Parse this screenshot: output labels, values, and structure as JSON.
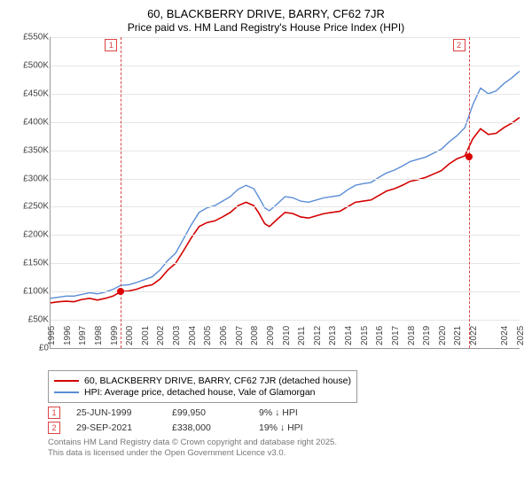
{
  "title": "60, BLACKBERRY DRIVE, BARRY, CF62 7JR",
  "subtitle": "Price paid vs. HM Land Registry's House Price Index (HPI)",
  "chart": {
    "type": "line",
    "ylim": [
      0,
      550000
    ],
    "ytick_step": 50000,
    "ylabels": [
      "£0",
      "£50K",
      "£100K",
      "£150K",
      "£200K",
      "£250K",
      "£300K",
      "£350K",
      "£400K",
      "£450K",
      "£500K",
      "£550K"
    ],
    "xlim": [
      1995,
      2025
    ],
    "xlabels": [
      "1995",
      "1996",
      "1997",
      "1998",
      "1999",
      "2000",
      "2001",
      "2002",
      "2003",
      "2004",
      "2005",
      "2006",
      "2007",
      "2008",
      "2009",
      "2010",
      "2011",
      "2012",
      "2013",
      "2014",
      "2015",
      "2016",
      "2017",
      "2018",
      "2019",
      "2020",
      "2021",
      "2022",
      "2024",
      "2025"
    ],
    "xticks": [
      1995,
      1996,
      1997,
      1998,
      1999,
      2000,
      2001,
      2002,
      2003,
      2004,
      2005,
      2006,
      2007,
      2008,
      2009,
      2010,
      2011,
      2012,
      2013,
      2014,
      2015,
      2016,
      2017,
      2018,
      2019,
      2020,
      2021,
      2022,
      2024,
      2025
    ],
    "background_color": "#ffffff",
    "grid_color": "#e5e5e5",
    "series": [
      {
        "name": "price_paid",
        "color": "#d40000",
        "width": 1.6,
        "data": [
          [
            1995,
            80000
          ],
          [
            1995.5,
            82000
          ],
          [
            1996,
            83000
          ],
          [
            1996.5,
            82000
          ],
          [
            1997,
            86000
          ],
          [
            1997.5,
            88000
          ],
          [
            1998,
            85000
          ],
          [
            1998.5,
            88000
          ],
          [
            1999,
            92000
          ],
          [
            1999.5,
            100000
          ],
          [
            2000,
            101000
          ],
          [
            2000.5,
            104000
          ],
          [
            2001,
            109000
          ],
          [
            2001.5,
            112000
          ],
          [
            2002,
            122000
          ],
          [
            2002.5,
            138000
          ],
          [
            2003,
            150000
          ],
          [
            2003.5,
            172000
          ],
          [
            2004,
            195000
          ],
          [
            2004.5,
            215000
          ],
          [
            2005,
            222000
          ],
          [
            2005.5,
            225000
          ],
          [
            2006,
            232000
          ],
          [
            2006.5,
            240000
          ],
          [
            2007,
            252000
          ],
          [
            2007.5,
            258000
          ],
          [
            2008,
            252000
          ],
          [
            2008.3,
            240000
          ],
          [
            2008.7,
            220000
          ],
          [
            2009,
            215000
          ],
          [
            2009.5,
            228000
          ],
          [
            2010,
            240000
          ],
          [
            2010.5,
            238000
          ],
          [
            2011,
            232000
          ],
          [
            2011.5,
            230000
          ],
          [
            2012,
            234000
          ],
          [
            2012.5,
            238000
          ],
          [
            2013,
            240000
          ],
          [
            2013.5,
            242000
          ],
          [
            2014,
            250000
          ],
          [
            2014.5,
            258000
          ],
          [
            2015,
            260000
          ],
          [
            2015.5,
            262000
          ],
          [
            2016,
            270000
          ],
          [
            2016.5,
            278000
          ],
          [
            2017,
            282000
          ],
          [
            2017.5,
            288000
          ],
          [
            2018,
            295000
          ],
          [
            2018.5,
            298000
          ],
          [
            2019,
            302000
          ],
          [
            2019.5,
            308000
          ],
          [
            2020,
            314000
          ],
          [
            2020.5,
            326000
          ],
          [
            2021,
            335000
          ],
          [
            2021.5,
            340000
          ],
          [
            2022,
            370000
          ],
          [
            2022.5,
            388000
          ],
          [
            2023,
            378000
          ],
          [
            2023.5,
            380000
          ],
          [
            2024,
            390000
          ],
          [
            2024.5,
            398000
          ],
          [
            2025,
            408000
          ]
        ]
      },
      {
        "name": "hpi",
        "color": "#5b8dd6",
        "width": 1.4,
        "data": [
          [
            1995,
            88000
          ],
          [
            1995.5,
            90000
          ],
          [
            1996,
            92000
          ],
          [
            1996.5,
            92000
          ],
          [
            1997,
            95000
          ],
          [
            1997.5,
            98000
          ],
          [
            1998,
            96000
          ],
          [
            1998.5,
            99000
          ],
          [
            1999,
            104000
          ],
          [
            1999.5,
            111000
          ],
          [
            2000,
            112000
          ],
          [
            2000.5,
            116000
          ],
          [
            2001,
            121000
          ],
          [
            2001.5,
            126000
          ],
          [
            2002,
            138000
          ],
          [
            2002.5,
            155000
          ],
          [
            2003,
            168000
          ],
          [
            2003.5,
            193000
          ],
          [
            2004,
            218000
          ],
          [
            2004.5,
            240000
          ],
          [
            2005,
            248000
          ],
          [
            2005.5,
            252000
          ],
          [
            2006,
            260000
          ],
          [
            2006.5,
            268000
          ],
          [
            2007,
            281000
          ],
          [
            2007.5,
            288000
          ],
          [
            2008,
            282000
          ],
          [
            2008.3,
            268000
          ],
          [
            2008.7,
            248000
          ],
          [
            2009,
            243000
          ],
          [
            2009.5,
            255000
          ],
          [
            2010,
            268000
          ],
          [
            2010.5,
            266000
          ],
          [
            2011,
            260000
          ],
          [
            2011.5,
            258000
          ],
          [
            2012,
            262000
          ],
          [
            2012.5,
            266000
          ],
          [
            2013,
            268000
          ],
          [
            2013.5,
            270000
          ],
          [
            2014,
            280000
          ],
          [
            2014.5,
            288000
          ],
          [
            2015,
            291000
          ],
          [
            2015.5,
            293000
          ],
          [
            2016,
            302000
          ],
          [
            2016.5,
            310000
          ],
          [
            2017,
            315000
          ],
          [
            2017.5,
            322000
          ],
          [
            2018,
            330000
          ],
          [
            2018.5,
            334000
          ],
          [
            2019,
            338000
          ],
          [
            2019.5,
            345000
          ],
          [
            2020,
            352000
          ],
          [
            2020.5,
            365000
          ],
          [
            2021,
            376000
          ],
          [
            2021.5,
            390000
          ],
          [
            2022,
            430000
          ],
          [
            2022.5,
            460000
          ],
          [
            2023,
            450000
          ],
          [
            2023.5,
            455000
          ],
          [
            2024,
            468000
          ],
          [
            2024.5,
            478000
          ],
          [
            2025,
            490000
          ]
        ]
      }
    ],
    "markers": [
      {
        "id": "1",
        "x": 1999.5,
        "point_y": 99950
      },
      {
        "id": "2",
        "x": 2021.75,
        "point_y": 338000
      }
    ]
  },
  "legend": {
    "items": [
      {
        "color": "#d40000",
        "label": "60, BLACKBERRY DRIVE, BARRY, CF62 7JR (detached house)"
      },
      {
        "color": "#5b8dd6",
        "label": "HPI: Average price, detached house, Vale of Glamorgan"
      }
    ]
  },
  "datapoints": [
    {
      "id": "1",
      "date": "25-JUN-1999",
      "price": "£99,950",
      "delta": "9% ↓ HPI"
    },
    {
      "id": "2",
      "date": "29-SEP-2021",
      "price": "£338,000",
      "delta": "19% ↓ HPI"
    }
  ],
  "footer": {
    "line1": "Contains HM Land Registry data © Crown copyright and database right 2025.",
    "line2": "This data is licensed under the Open Government Licence v3.0."
  }
}
